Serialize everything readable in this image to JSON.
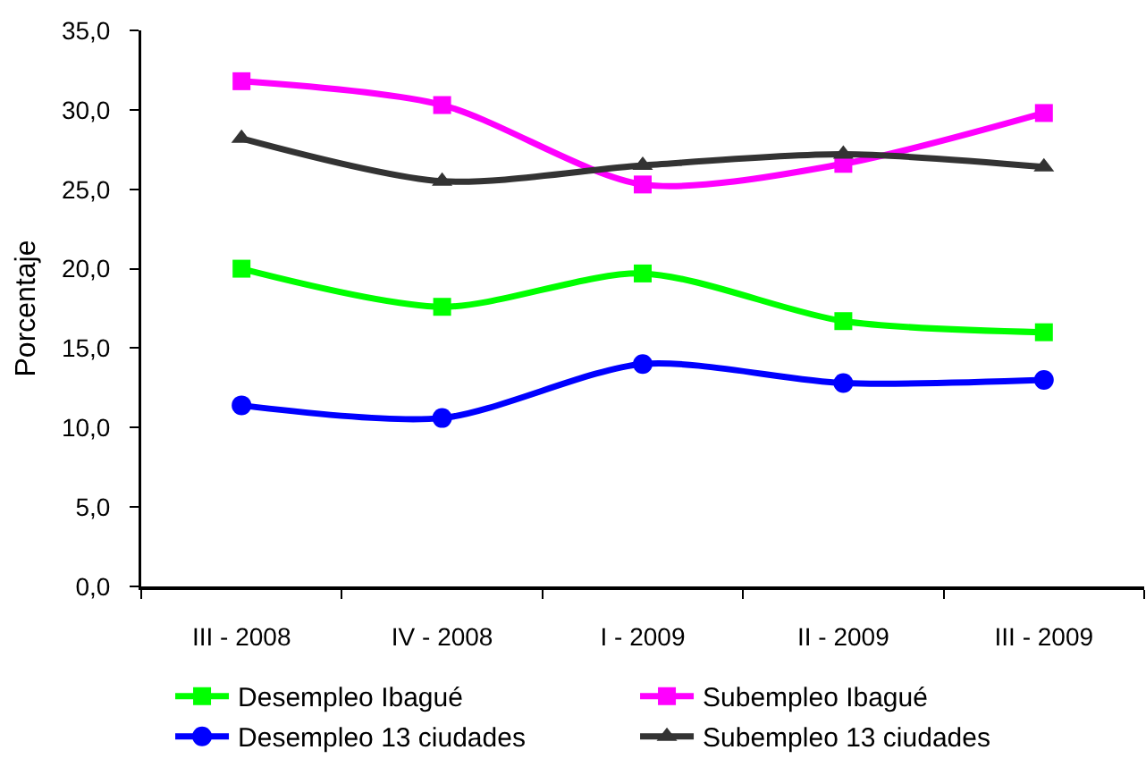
{
  "chart_data": {
    "type": "line",
    "ylabel": "Porcentaje",
    "categories": [
      "III - 2008",
      "IV - 2008",
      "I - 2009",
      "II - 2009",
      "III - 2009"
    ],
    "series": [
      {
        "name": "Desempleo Ibagué",
        "color": "#00ff00",
        "marker": "square",
        "values": [
          20.0,
          17.6,
          19.7,
          16.7,
          16.0
        ]
      },
      {
        "name": "Subempleo Ibagué",
        "color": "#ff00ff",
        "marker": "square",
        "values": [
          31.8,
          30.3,
          25.3,
          26.6,
          29.8
        ]
      },
      {
        "name": "Desempleo 13 ciudades",
        "color": "#0000ff",
        "marker": "circle",
        "values": [
          11.4,
          10.6,
          14.0,
          12.8,
          13.0
        ]
      },
      {
        "name": "Subempleo 13 ciudades",
        "color": "#333333",
        "marker": "triangle",
        "values": [
          28.2,
          25.5,
          26.5,
          27.2,
          26.4
        ]
      }
    ],
    "ylim": [
      0,
      35
    ],
    "yticks": [
      {
        "value": 0,
        "label": "0,0"
      },
      {
        "value": 5,
        "label": "5,0"
      },
      {
        "value": 10,
        "label": "10,0"
      },
      {
        "value": 15,
        "label": "15,0"
      },
      {
        "value": 20,
        "label": "20,0"
      },
      {
        "value": 25,
        "label": "25,0"
      },
      {
        "value": 30,
        "label": "30,0"
      },
      {
        "value": 35,
        "label": "35,0"
      }
    ],
    "legend": "bottom"
  }
}
